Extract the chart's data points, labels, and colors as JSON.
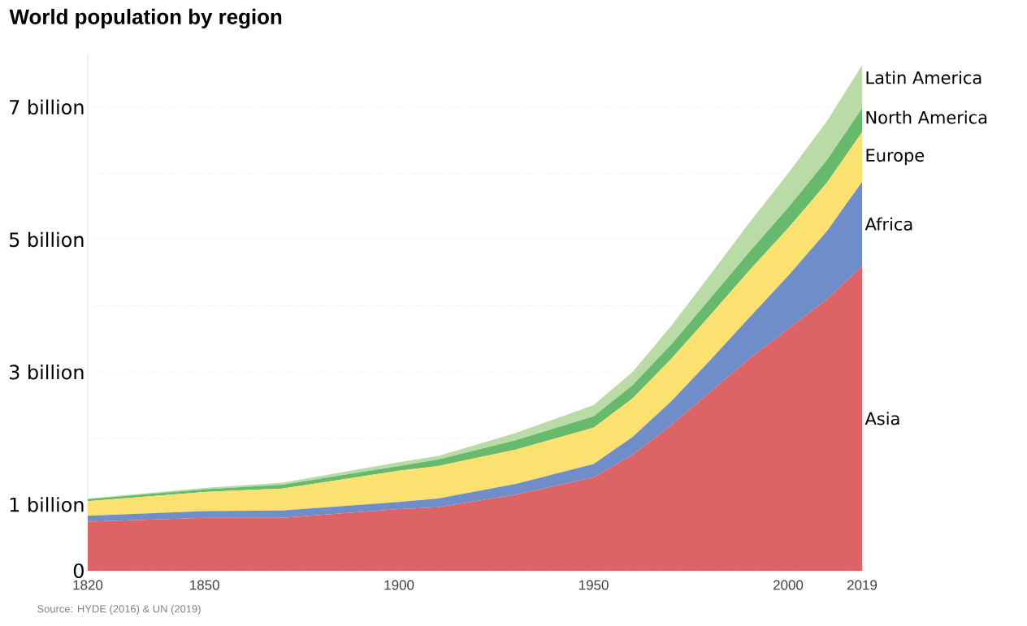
{
  "chart_data": {
    "type": "area",
    "title": "World population by region",
    "stacked": true,
    "legend": false,
    "grid": "y",
    "line_style": "dotted",
    "x": [
      1820,
      1850,
      1870,
      1900,
      1910,
      1930,
      1950,
      1960,
      1970,
      1980,
      1990,
      2000,
      2010,
      2019
    ],
    "series": [
      {
        "name": "Asia",
        "color": "#dd6466",
        "values": [
          0.74,
          0.8,
          0.8,
          0.93,
          0.96,
          1.15,
          1.41,
          1.75,
          2.2,
          2.7,
          3.2,
          3.65,
          4.1,
          4.6
        ]
      },
      {
        "name": "Africa",
        "color": "#6f8dc8",
        "values": [
          0.09,
          0.1,
          0.11,
          0.11,
          0.13,
          0.16,
          0.2,
          0.27,
          0.36,
          0.48,
          0.62,
          0.8,
          1.03,
          1.27
        ]
      },
      {
        "name": "Europe",
        "color": "#fbe16f",
        "values": [
          0.22,
          0.29,
          0.33,
          0.47,
          0.49,
          0.52,
          0.55,
          0.58,
          0.64,
          0.68,
          0.71,
          0.72,
          0.73,
          0.75
        ]
      },
      {
        "name": "North America",
        "color": "#67b96b",
        "values": [
          0.03,
          0.04,
          0.06,
          0.07,
          0.1,
          0.14,
          0.17,
          0.2,
          0.22,
          0.25,
          0.28,
          0.31,
          0.34,
          0.36
        ]
      },
      {
        "name": "Latin America",
        "color": "#b9dba6",
        "values": [
          0.01,
          0.02,
          0.03,
          0.06,
          0.05,
          0.11,
          0.17,
          0.2,
          0.28,
          0.36,
          0.44,
          0.52,
          0.59,
          0.65
        ]
      }
    ],
    "xlim": [
      1820,
      2019
    ],
    "ylim": [
      0,
      7.8
    ],
    "xticks": [
      1820,
      1850,
      1900,
      1950,
      2000,
      2019
    ],
    "yticks": [
      {
        "value": 0,
        "label": "0"
      },
      {
        "value": 1,
        "label": "1 billion"
      },
      {
        "value": 2,
        "label": null
      },
      {
        "value": 3,
        "label": "3 billion"
      },
      {
        "value": 4,
        "label": null
      },
      {
        "value": 5,
        "label": "5 billion"
      },
      {
        "value": 6,
        "label": null
      },
      {
        "value": 7,
        "label": "7 billion"
      }
    ],
    "annotations": [
      "Source: HYDE (2016) & UN (2019)"
    ]
  }
}
